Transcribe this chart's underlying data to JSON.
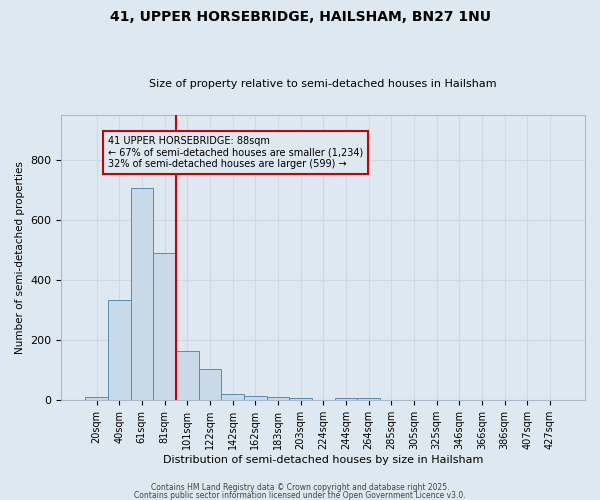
{
  "title1": "41, UPPER HORSEBRIDGE, HAILSHAM, BN27 1NU",
  "title2": "Size of property relative to semi-detached houses in Hailsham",
  "xlabel": "Distribution of semi-detached houses by size in Hailsham",
  "ylabel": "Number of semi-detached properties",
  "bar_labels": [
    "20sqm",
    "40sqm",
    "61sqm",
    "81sqm",
    "101sqm",
    "122sqm",
    "142sqm",
    "162sqm",
    "183sqm",
    "203sqm",
    "224sqm",
    "244sqm",
    "264sqm",
    "285sqm",
    "305sqm",
    "325sqm",
    "346sqm",
    "366sqm",
    "386sqm",
    "407sqm",
    "427sqm"
  ],
  "bar_values": [
    12,
    335,
    705,
    490,
    165,
    105,
    22,
    15,
    10,
    8,
    0,
    8,
    8,
    0,
    0,
    0,
    0,
    0,
    0,
    0,
    0
  ],
  "bar_color": "#c9d9e8",
  "bar_edge_color": "#5a8ab5",
  "annotation_line1": "41 UPPER HORSEBRIDGE: 88sqm",
  "annotation_line2": "← 67% of semi-detached houses are smaller (1,234)",
  "annotation_line3": "32% of semi-detached houses are larger (599) →",
  "vline_color": "#cc0000",
  "vline_x": 3.5,
  "grid_color": "#d0d8e8",
  "background_color": "#dde8f0",
  "ylim": [
    0,
    950
  ],
  "footnote1": "Contains HM Land Registry data © Crown copyright and database right 2025.",
  "footnote2": "Contains public sector information licensed under the Open Government Licence v3.0."
}
